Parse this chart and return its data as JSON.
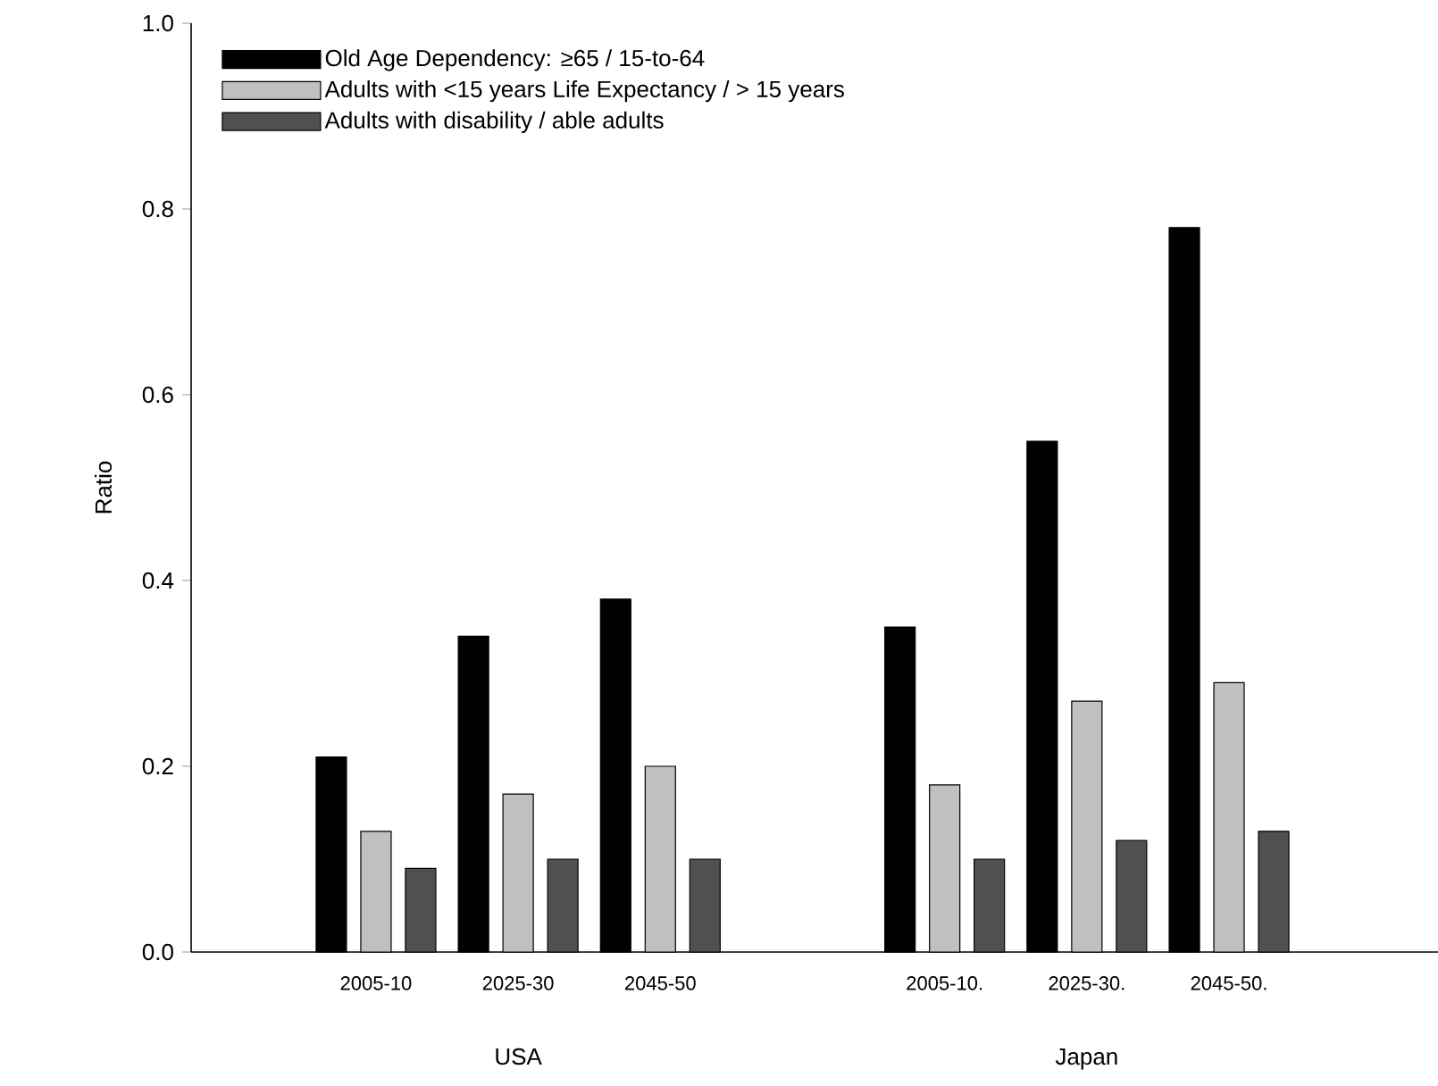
{
  "chart_data": {
    "type": "bar",
    "ylabel": "Ratio",
    "categories": [
      "2005-10",
      "2025-30",
      "2045-50",
      null,
      "2005-10.",
      "2025-30.",
      "2045-50."
    ],
    "series": [
      {
        "name": "Old Age Dependency: ≥65 / 15-to-64",
        "color": "#000000",
        "values": [
          0.21,
          0.34,
          0.38,
          null,
          0.35,
          0.55,
          0.78
        ]
      },
      {
        "name": "Adults with <15 years Life Expectancy / > 15 years",
        "color": "#c0c0c0",
        "values": [
          0.13,
          0.17,
          0.2,
          null,
          0.18,
          0.27,
          0.29
        ]
      },
      {
        "name": "Adults with disability / able adults",
        "color": "#505050",
        "values": [
          0.09,
          0.1,
          0.1,
          null,
          0.1,
          0.12,
          0.13
        ]
      }
    ],
    "annotations": [
      "USA",
      "Japan"
    ],
    "ylim": [
      0,
      1
    ],
    "yticks": [
      {
        "value": 0,
        "label": "0.0"
      },
      {
        "value": 0.2,
        "label": "0.2"
      },
      {
        "value": 0.4,
        "label": "0.4"
      },
      {
        "value": 0.6,
        "label": "0.6"
      },
      {
        "value": 0.8,
        "label": "0.8"
      },
      {
        "value": 1,
        "label": "1.0"
      }
    ],
    "grid": false,
    "legend": "top left"
  }
}
